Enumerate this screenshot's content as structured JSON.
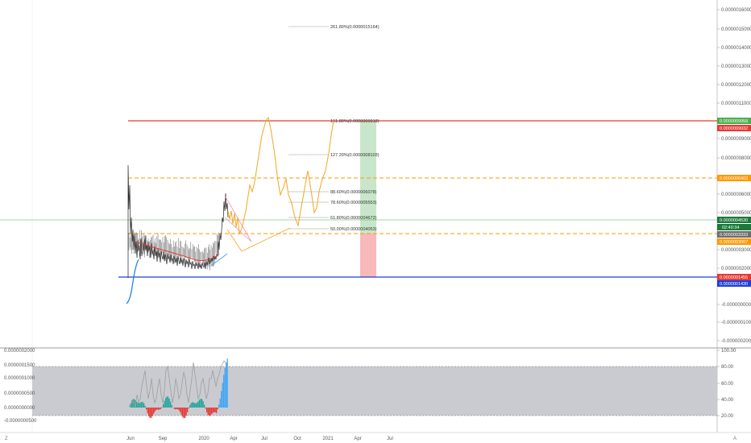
{
  "colors": {
    "resistance": "#e53935",
    "support": "#1e3fd8",
    "dashed_level": "#ff9800",
    "green_line": "#4caf50",
    "projection": "#f5a623",
    "target_zone": "#c8e6c9",
    "stop_zone": "#f7b9b9",
    "band": "#c9cbd0",
    "hist_green": "#26a69a",
    "hist_red": "#e53935",
    "hist_blue": "#42a5f5",
    "osc_line": "#9e9e9e"
  },
  "main_price_axis": {
    "ticks": [
      "0.0000016000",
      "0.0000015000",
      "0.0000014000",
      "0.0000013000",
      "0.0000012000",
      "0.0000011000",
      "0.0000009000",
      "0.0000008000",
      "0.0000006000",
      "0.0000005000",
      "0.0000003000",
      "0.0000002000",
      "-0.0000000000",
      "-0.0000001000",
      "-0.0000002000"
    ]
  },
  "price_tags": {
    "top_green": "0.0000009958",
    "top_red": "0.0000009932",
    "orange_upper": "0.0000006403",
    "green_mid": "0.0000004530",
    "countdown": "02:40:34",
    "gray_mid": "0.0000003333",
    "orange_lower": "0.0000003007",
    "red_low": "0.0000001455",
    "blue_low": "0.0000001430"
  },
  "fib_levels": [
    {
      "label": "261.80%(0.0000015164)"
    },
    {
      "label": "161.80%(0.0000009918)"
    },
    {
      "label": "127.20%(0.0000008103)"
    },
    {
      "label": "88.60%(0.0000006078)"
    },
    {
      "label": "78.60%(0.0000005553)"
    },
    {
      "label": "61.80%(0.0000004672)"
    },
    {
      "label": "50.00%(0.0000004053)"
    }
  ],
  "osc_left_axis": {
    "ticks": [
      "0.0000002000",
      "0.0000001500",
      "0.0000001000",
      "0.0000000500",
      "0.0000000000",
      "-0.0000000500"
    ]
  },
  "osc_right_axis": {
    "ticks": [
      "100.00",
      "80.00",
      "60.00",
      "40.00",
      "20.00"
    ]
  },
  "time_axis": {
    "labels": [
      "Jun",
      "Sep",
      "2020",
      "Apr",
      "Jul",
      "Oct",
      "2021",
      "Apr",
      "Jul"
    ]
  },
  "corners": {
    "left_bottom": "Z",
    "right_bottom": "A"
  }
}
